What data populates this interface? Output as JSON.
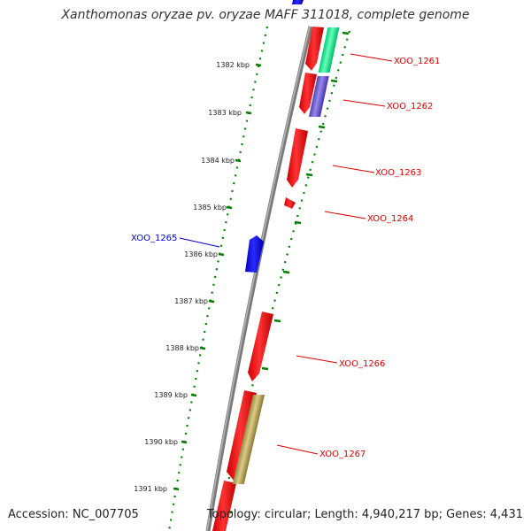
{
  "title": "Xanthomonas oryzae pv. oryzae MAFF 311018, complete genome",
  "accession_text": "Accession: NC_007705",
  "summary_text": "Topology: circular; Length: 4,940,217 bp; Genes: 4,431",
  "scale_labels": [
    "1382 kbp",
    "1383 kbp",
    "1384 kbp",
    "1385 kbp",
    "1386 kbp",
    "1387 kbp",
    "1388 kbp",
    "1389 kbp",
    "1390 kbp",
    "1391 kbp"
  ],
  "gene_labels": [
    "XOO_1261",
    "XOO_1262",
    "XOO_1263",
    "XOO_1264",
    "XOO_1265",
    "XOO_1266",
    "XOO_1267"
  ],
  "colors": {
    "forward_gene": "#ff0000",
    "reverse_gene": "#0000ff",
    "backbone": "#808080",
    "ruler": "#008000",
    "feature_green": "#00ee88",
    "feature_purple": "#7766cc",
    "feature_khaki": "#bbaa66"
  }
}
